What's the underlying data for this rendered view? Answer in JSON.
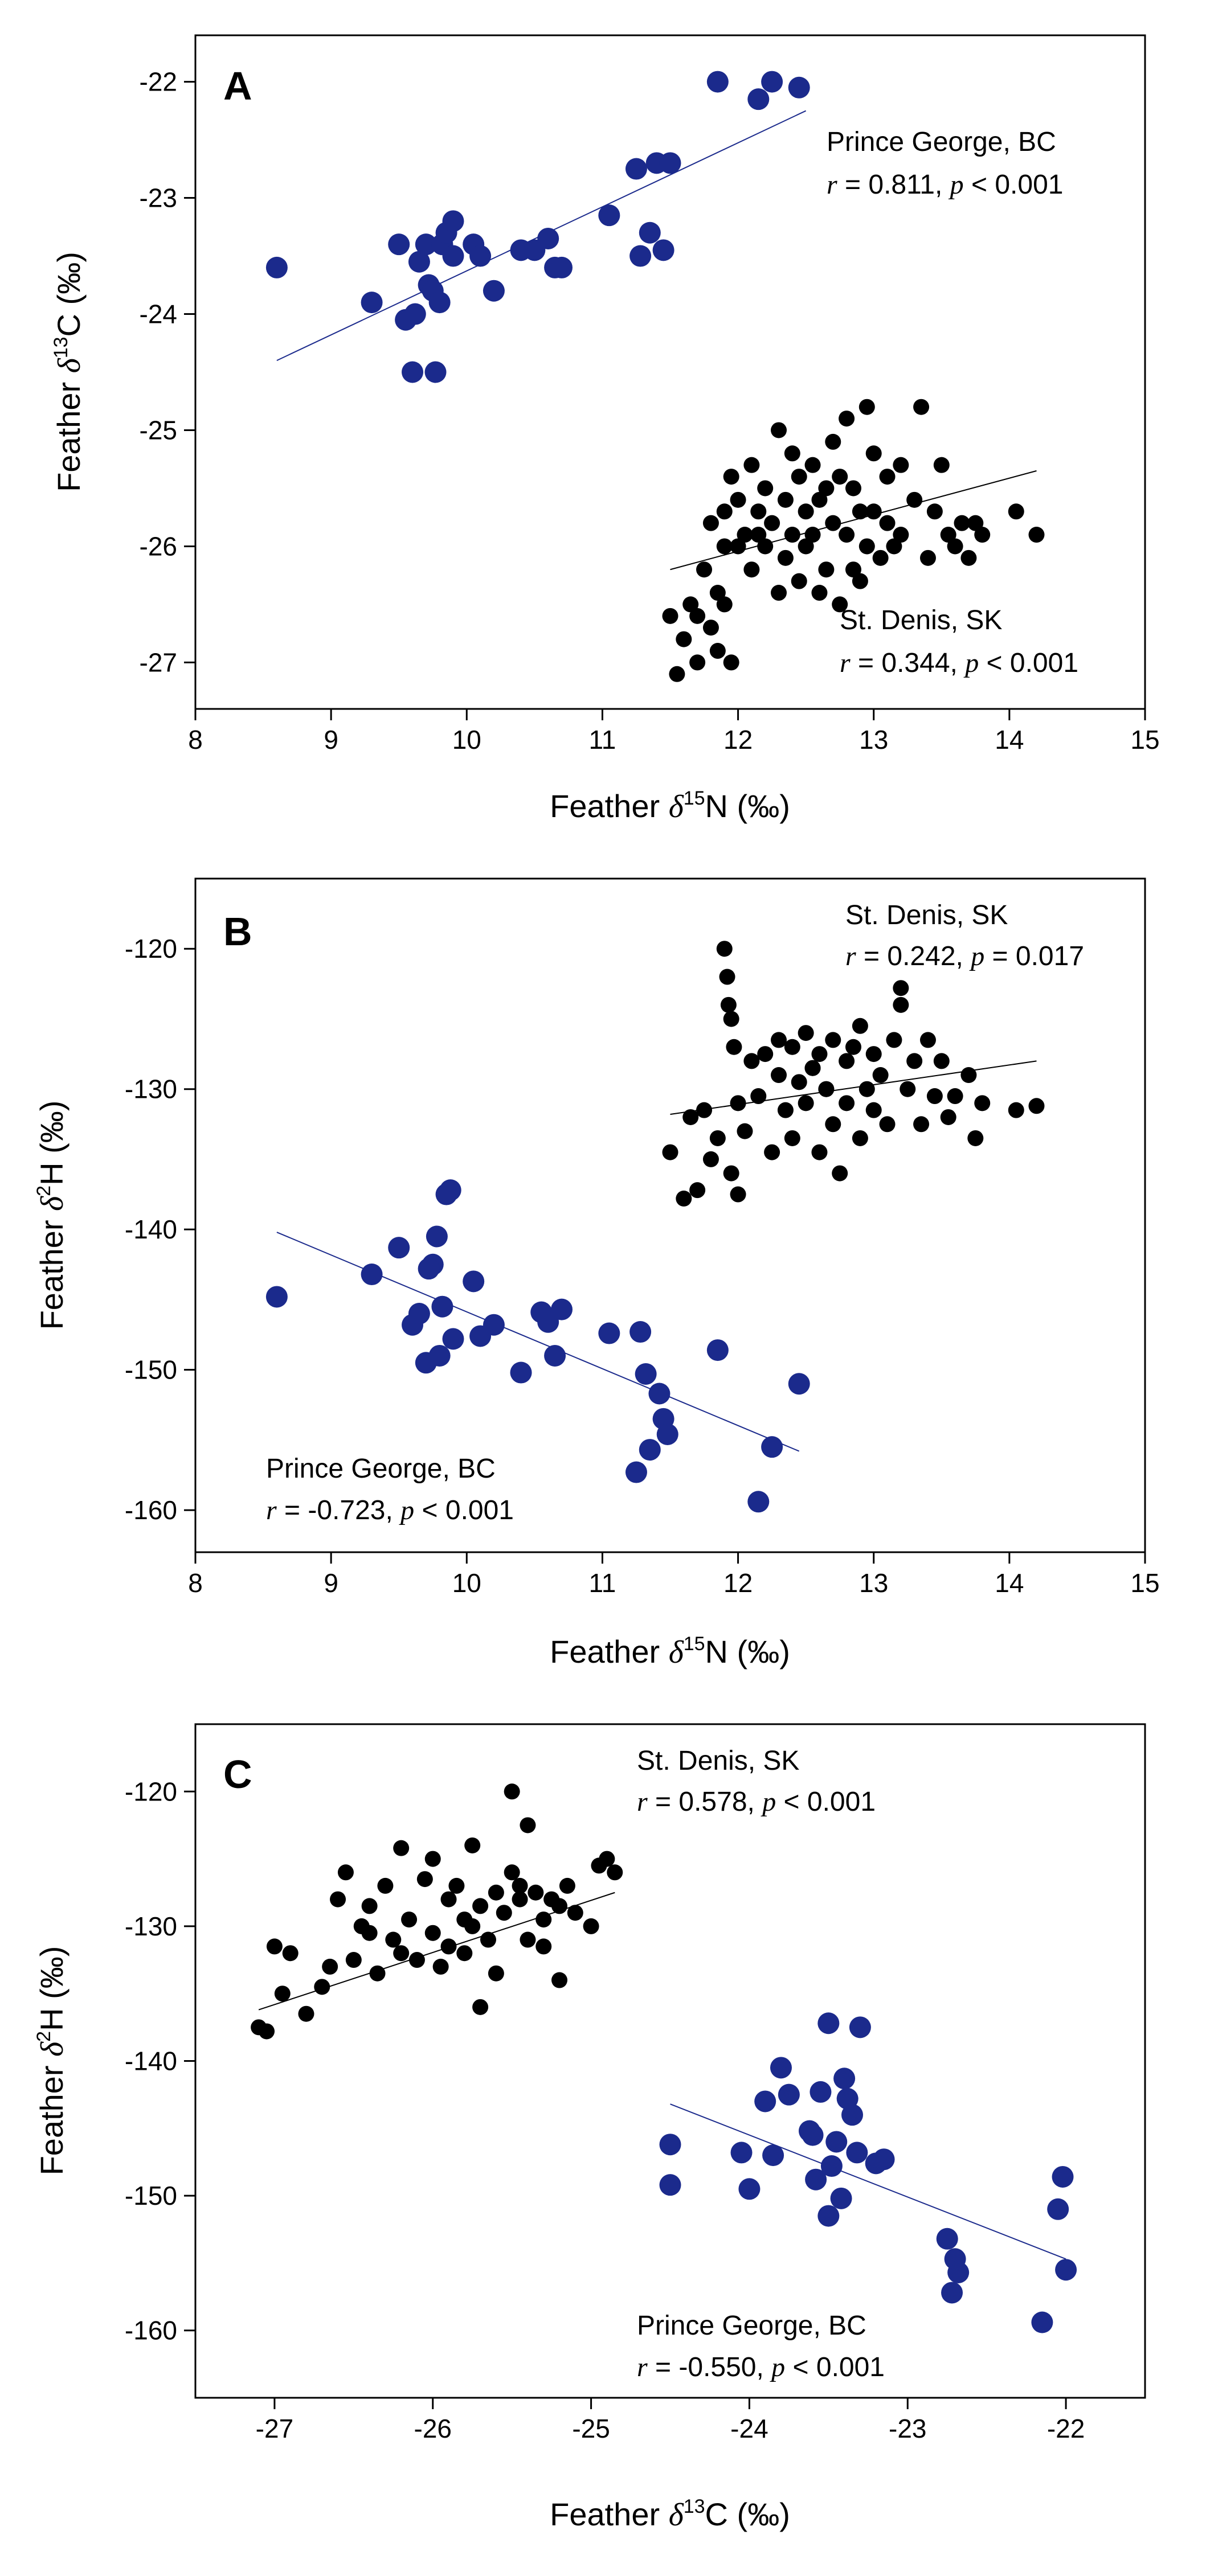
{
  "chart_data": [
    {
      "type": "scatter",
      "panel_letter": "A",
      "xlabel": {
        "prefix": "Feather ",
        "delta": "δ",
        "sup": "15",
        "element": "N",
        "unit": " (‰)"
      },
      "ylabel": {
        "prefix": "Feather ",
        "delta": "δ",
        "sup": "13",
        "element": "C",
        "unit": " (‰)"
      },
      "xlim": [
        8,
        15
      ],
      "ylim": [
        -27.4,
        -21.6
      ],
      "xticks": [
        8,
        9,
        10,
        11,
        12,
        13,
        14,
        15
      ],
      "yticks": [
        -27,
        -26,
        -25,
        -24,
        -23,
        -22
      ],
      "series": [
        {
          "name": "Prince George, BC",
          "color": "#1b2a8c",
          "marker": "large",
          "annotation": {
            "site": "Prince George, BC",
            "r": "0.811",
            "p": "< 0.001"
          },
          "fit": {
            "x": [
              8.6,
              12.5
            ],
            "y": [
              -24.4,
              -22.25
            ]
          },
          "x": [
            8.6,
            9.3,
            9.5,
            9.55,
            9.6,
            9.65,
            9.7,
            9.72,
            9.75,
            9.8,
            9.82,
            9.85,
            9.9,
            9.9,
            10.05,
            10.1,
            10.2,
            10.4,
            10.5,
            10.6,
            10.65,
            10.7,
            11.05,
            11.25,
            11.28,
            11.35,
            11.4,
            11.45,
            11.5,
            11.85,
            12.15,
            12.25,
            12.45,
            9.62,
            9.77
          ],
          "y": [
            -23.6,
            -23.9,
            -23.4,
            -24.05,
            -24.5,
            -23.55,
            -23.4,
            -23.75,
            -23.8,
            -23.9,
            -23.4,
            -23.3,
            -23.2,
            -23.5,
            -23.4,
            -23.5,
            -23.8,
            -23.45,
            -23.45,
            -23.35,
            -23.6,
            -23.6,
            -23.15,
            -22.75,
            -23.5,
            -23.3,
            -22.7,
            -23.45,
            -22.7,
            -22.0,
            -22.15,
            -22.0,
            -22.05,
            -24.0,
            -24.5
          ]
        },
        {
          "name": "St. Denis, SK",
          "color": "#000000",
          "marker": "small",
          "annotation": {
            "site": "St. Denis, SK",
            "r": "0.344",
            "p": "< 0.001"
          },
          "fit": {
            "x": [
              11.5,
              14.2
            ],
            "y": [
              -26.2,
              -25.35
            ]
          },
          "x": [
            11.5,
            11.55,
            11.6,
            11.65,
            11.7,
            11.7,
            11.75,
            11.8,
            11.8,
            11.85,
            11.85,
            11.9,
            11.9,
            11.95,
            11.95,
            12.0,
            12.0,
            12.05,
            12.1,
            12.1,
            12.15,
            12.2,
            12.2,
            12.25,
            12.3,
            12.3,
            12.35,
            12.35,
            12.4,
            12.4,
            12.45,
            12.45,
            12.5,
            12.5,
            12.55,
            12.55,
            12.6,
            12.6,
            12.65,
            12.65,
            12.7,
            12.7,
            12.75,
            12.75,
            12.8,
            12.8,
            12.85,
            12.85,
            12.9,
            12.9,
            12.95,
            12.95,
            13.0,
            13.0,
            13.05,
            13.1,
            13.1,
            13.15,
            13.2,
            13.2,
            13.3,
            13.35,
            13.4,
            13.45,
            13.5,
            13.55,
            13.6,
            13.65,
            13.7,
            13.75,
            13.8,
            14.05,
            14.2,
            11.9,
            12.15
          ],
          "y": [
            -26.6,
            -27.1,
            -26.8,
            -26.5,
            -27.0,
            -26.6,
            -26.2,
            -25.8,
            -26.7,
            -26.4,
            -26.9,
            -26.5,
            -25.7,
            -27.0,
            -25.4,
            -25.6,
            -26.0,
            -25.9,
            -25.3,
            -26.2,
            -25.7,
            -25.5,
            -26.0,
            -25.8,
            -26.4,
            -25.0,
            -25.6,
            -26.1,
            -25.2,
            -25.9,
            -25.4,
            -26.3,
            -25.7,
            -26.0,
            -25.3,
            -25.9,
            -25.6,
            -26.4,
            -25.5,
            -26.2,
            -25.1,
            -25.8,
            -26.5,
            -25.4,
            -25.9,
            -24.9,
            -25.5,
            -26.2,
            -25.7,
            -26.3,
            -24.8,
            -26.0,
            -25.2,
            -25.7,
            -26.1,
            -25.4,
            -25.8,
            -26.0,
            -25.3,
            -25.9,
            -25.6,
            -24.8,
            -26.1,
            -25.7,
            -25.3,
            -25.9,
            -26.0,
            -25.8,
            -26.1,
            -25.8,
            -25.9,
            -25.7,
            -25.9,
            -26.0,
            -25.9
          ]
        }
      ]
    },
    {
      "type": "scatter",
      "panel_letter": "B",
      "xlabel": {
        "prefix": "Feather ",
        "delta": "δ",
        "sup": "15",
        "element": "N",
        "unit": " (‰)"
      },
      "ylabel": {
        "prefix": "Feather ",
        "delta": "δ",
        "sup": "2",
        "element": "H",
        "unit": " (‰)"
      },
      "xlim": [
        8,
        15
      ],
      "ylim": [
        -163,
        -115
      ],
      "xticks": [
        8,
        9,
        10,
        11,
        12,
        13,
        14,
        15
      ],
      "yticks": [
        -160,
        -150,
        -140,
        -130,
        -120
      ],
      "series": [
        {
          "name": "Prince George, BC",
          "color": "#1b2a8c",
          "marker": "large",
          "annotation": {
            "site": "Prince George, BC",
            "r": "-0.723",
            "p": "< 0.001"
          },
          "fit": {
            "x": [
              8.6,
              12.45
            ],
            "y": [
              -140.2,
              -155.8
            ]
          },
          "x": [
            8.6,
            9.3,
            9.5,
            9.6,
            9.65,
            9.7,
            9.75,
            9.78,
            9.8,
            9.82,
            9.85,
            9.88,
            9.9,
            10.05,
            10.1,
            10.2,
            10.4,
            10.55,
            10.6,
            10.65,
            10.7,
            11.05,
            11.25,
            11.28,
            11.32,
            11.35,
            11.42,
            11.45,
            11.48,
            11.85,
            12.15,
            12.25,
            12.45,
            9.72
          ],
          "y": [
            -144.8,
            -143.2,
            -141.3,
            -146.8,
            -146.0,
            -149.5,
            -142.5,
            -140.5,
            -149.0,
            -145.5,
            -137.5,
            -137.2,
            -147.8,
            -143.7,
            -147.6,
            -146.8,
            -150.2,
            -145.9,
            -146.6,
            -149.0,
            -145.7,
            -147.4,
            -157.3,
            -147.3,
            -150.3,
            -155.7,
            -151.7,
            -153.5,
            -154.6,
            -148.6,
            -159.4,
            -155.5,
            -151.0,
            -142.8
          ]
        },
        {
          "name": "St. Denis, SK",
          "color": "#000000",
          "marker": "small",
          "annotation": {
            "site": "St. Denis, SK",
            "r": "0.242",
            "p": "= 0.017"
          },
          "fit": {
            "x": [
              11.5,
              14.2
            ],
            "y": [
              -131.8,
              -128.0
            ]
          },
          "x": [
            11.5,
            11.6,
            11.65,
            11.7,
            11.75,
            11.8,
            11.85,
            11.9,
            11.92,
            11.95,
            11.95,
            12.0,
            12.0,
            12.05,
            12.1,
            12.15,
            12.2,
            12.25,
            12.3,
            12.3,
            12.35,
            12.4,
            12.4,
            12.45,
            12.5,
            12.5,
            12.55,
            12.6,
            12.6,
            12.65,
            12.7,
            12.7,
            12.75,
            12.8,
            12.8,
            12.85,
            12.9,
            12.9,
            12.95,
            13.0,
            13.0,
            13.05,
            13.1,
            13.15,
            13.2,
            13.25,
            13.3,
            13.35,
            13.4,
            13.45,
            13.5,
            13.55,
            13.6,
            13.7,
            13.75,
            13.8,
            14.05,
            14.2,
            11.93,
            11.97,
            12.55,
            12.65,
            13.2
          ],
          "y": [
            -134.5,
            -137.8,
            -132.0,
            -137.2,
            -131.5,
            -135.0,
            -133.5,
            -120.0,
            -122.0,
            -136.0,
            -125.0,
            -131.0,
            -137.5,
            -133.0,
            -128.0,
            -130.5,
            -127.5,
            -134.5,
            -129.0,
            -126.5,
            -131.5,
            -127.0,
            -133.5,
            -129.5,
            -126.0,
            -131.0,
            -128.5,
            -134.5,
            -127.5,
            -130.0,
            -126.5,
            -132.5,
            -136.0,
            -128.0,
            -131.0,
            -127.0,
            -125.5,
            -133.5,
            -130.0,
            -127.5,
            -131.5,
            -129.0,
            -132.5,
            -126.5,
            -122.8,
            -130.0,
            -128.0,
            -132.5,
            -126.5,
            -130.5,
            -128.0,
            -132.0,
            -130.5,
            -129.0,
            -133.5,
            -131.0,
            -131.5,
            -131.2,
            -124.0,
            -127.0,
            -128.5,
            -130.0,
            -124.0
          ]
        }
      ]
    },
    {
      "type": "scatter",
      "panel_letter": "C",
      "xlabel": {
        "prefix": "Feather ",
        "delta": "δ",
        "sup": "13",
        "element": "C",
        "unit": " (‰)"
      },
      "ylabel": {
        "prefix": "Feather ",
        "delta": "δ",
        "sup": "2",
        "element": "H",
        "unit": " (‰)"
      },
      "xlim": [
        -27.5,
        -21.5
      ],
      "ylim": [
        -165,
        -115
      ],
      "xticks": [
        -27,
        -26,
        -25,
        -24,
        -23,
        -22
      ],
      "yticks": [
        -160,
        -150,
        -140,
        -130,
        -120
      ],
      "series": [
        {
          "name": "St. Denis, SK",
          "color": "#000000",
          "marker": "small",
          "annotation": {
            "site": "St. Denis, SK",
            "r": "0.578",
            "p": "< 0.001"
          },
          "fit": {
            "x": [
              -27.1,
              -24.85
            ],
            "y": [
              -136.2,
              -127.5
            ]
          },
          "x": [
            -27.1,
            -27.05,
            -27.0,
            -26.95,
            -26.9,
            -26.8,
            -26.7,
            -26.65,
            -26.6,
            -26.55,
            -26.5,
            -26.45,
            -26.4,
            -26.35,
            -26.3,
            -26.25,
            -26.2,
            -26.15,
            -26.1,
            -26.05,
            -26.0,
            -26.0,
            -25.95,
            -25.9,
            -25.9,
            -25.85,
            -25.8,
            -25.8,
            -25.75,
            -25.7,
            -25.7,
            -25.65,
            -25.6,
            -25.6,
            -25.55,
            -25.5,
            -25.5,
            -25.45,
            -25.4,
            -25.4,
            -25.35,
            -25.3,
            -25.3,
            -25.25,
            -25.2,
            -25.15,
            -25.1,
            -25.0,
            -24.95,
            -24.9,
            -24.85,
            -26.4,
            -26.2,
            -25.75,
            -25.45,
            -25.2
          ],
          "y": [
            -137.5,
            -137.8,
            -131.5,
            -135.0,
            -132.0,
            -136.5,
            -134.5,
            -133.0,
            -128.0,
            -126.0,
            -132.5,
            -130.0,
            -128.5,
            -133.5,
            -127.0,
            -131.0,
            -124.2,
            -129.5,
            -132.5,
            -126.5,
            -130.5,
            -125.0,
            -133.0,
            -128.0,
            -131.5,
            -127.0,
            -129.5,
            -132.0,
            -124.0,
            -128.5,
            -136.0,
            -131.0,
            -127.5,
            -133.5,
            -129.0,
            -126.0,
            -120.0,
            -128.0,
            -131.0,
            -122.5,
            -127.5,
            -129.5,
            -131.5,
            -128.0,
            -134.0,
            -127.0,
            -129.0,
            -130.0,
            -125.5,
            -125.0,
            -126.0,
            -130.5,
            -132.0,
            -130.0,
            -127.0,
            -128.5
          ]
        },
        {
          "name": "Prince George, BC",
          "color": "#1b2a8c",
          "marker": "large",
          "annotation": {
            "site": "Prince George, BC",
            "r": "-0.550",
            "p": "< 0.001"
          },
          "fit": {
            "x": [
              -24.5,
              -22.0
            ],
            "y": [
              -143.2,
              -154.7
            ]
          },
          "x": [
            -24.5,
            -24.5,
            -24.05,
            -24.0,
            -23.9,
            -23.8,
            -23.75,
            -23.6,
            -23.58,
            -23.55,
            -23.5,
            -23.5,
            -23.48,
            -23.45,
            -23.42,
            -23.4,
            -23.38,
            -23.35,
            -23.32,
            -23.3,
            -23.2,
            -23.15,
            -22.75,
            -22.72,
            -22.7,
            -22.68,
            -22.15,
            -22.05,
            -22.02,
            -22.0,
            -23.62,
            -23.85
          ],
          "y": [
            -146.2,
            -149.2,
            -146.8,
            -149.5,
            -143.0,
            -140.5,
            -142.5,
            -145.5,
            -148.8,
            -142.3,
            -137.2,
            -151.5,
            -147.8,
            -146.0,
            -150.2,
            -141.3,
            -142.8,
            -144.0,
            -146.8,
            -137.5,
            -147.6,
            -147.3,
            -153.2,
            -157.2,
            -154.7,
            -155.7,
            -159.4,
            -151.0,
            -148.6,
            -155.5,
            -145.2,
            -147.0
          ]
        }
      ]
    }
  ]
}
